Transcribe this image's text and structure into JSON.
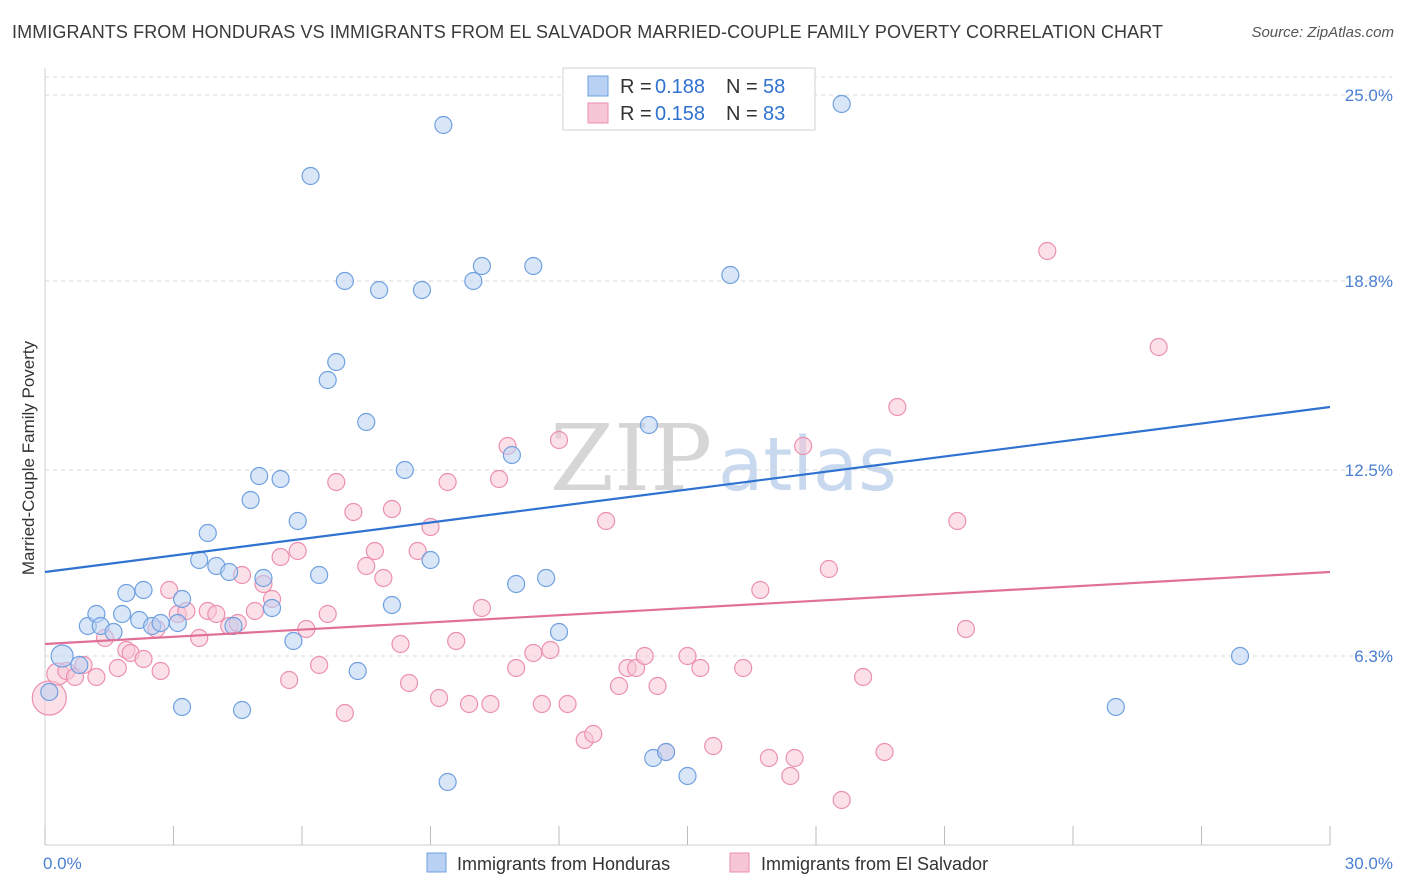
{
  "header": {
    "title": "IMMIGRANTS FROM HONDURAS VS IMMIGRANTS FROM EL SALVADOR MARRIED-COUPLE FAMILY POVERTY CORRELATION CHART",
    "source": "Source: ZipAtlas.com"
  },
  "watermark": {
    "part1": "ZIP",
    "part2": "atlas"
  },
  "colors": {
    "blue": "#6fa0e0",
    "blue_fill": "#b9d1f2",
    "blue_line": "#2f72d0",
    "pink": "#ec8fb0",
    "pink_fill": "#f7c6d6",
    "pink_line": "#e0709a",
    "tick_text": "#4a7fd1",
    "grid": "#d9d9d9"
  },
  "legend": {
    "rows": [
      {
        "r_label": "R = ",
        "r_value": "0.188",
        "n_label": "N = ",
        "n_value": "58"
      },
      {
        "r_label": "R = ",
        "r_value": "0.158",
        "n_label": "N = ",
        "n_value": "83"
      }
    ]
  },
  "chart_data": {
    "type": "scatter",
    "title": "IMMIGRANTS FROM HONDURAS VS IMMIGRANTS FROM EL SALVADOR MARRIED-COUPLE FAMILY POVERTY CORRELATION CHART",
    "xlabel": "",
    "ylabel": "Married-Couple Family Poverty",
    "xlim": [
      0,
      30
    ],
    "ylim": [
      0,
      25.6
    ],
    "x_tick_labels": [
      "0.0%",
      "30.0%"
    ],
    "y_ticks": [
      6.3,
      12.5,
      18.8,
      25.0
    ],
    "y_tick_labels": [
      "6.3%",
      "12.5%",
      "18.8%",
      "25.0%"
    ],
    "grid": true,
    "series": [
      {
        "name": "Immigrants from Honduras",
        "color": "blue",
        "r": 0.188,
        "n": 58,
        "trend": {
          "x": [
            0,
            30
          ],
          "y": [
            9.1,
            14.6
          ]
        },
        "points": [
          [
            0.4,
            6.3,
            2
          ],
          [
            0.8,
            6.0,
            1
          ],
          [
            1.0,
            7.3,
            1
          ],
          [
            1.2,
            7.7,
            1
          ],
          [
            1.3,
            7.3,
            1
          ],
          [
            1.6,
            7.1,
            1
          ],
          [
            1.8,
            7.7,
            1
          ],
          [
            1.9,
            8.4,
            1
          ],
          [
            2.2,
            7.5,
            1
          ],
          [
            2.3,
            8.5,
            1
          ],
          [
            2.5,
            7.3,
            1
          ],
          [
            2.7,
            7.4,
            1
          ],
          [
            3.1,
            7.4,
            1
          ],
          [
            3.2,
            8.2,
            1
          ],
          [
            3.6,
            9.5,
            1
          ],
          [
            3.8,
            10.4,
            1
          ],
          [
            4.0,
            9.3,
            1
          ],
          [
            4.3,
            9.1,
            1
          ],
          [
            4.4,
            7.3,
            1
          ],
          [
            4.8,
            11.5,
            1
          ],
          [
            5.0,
            12.3,
            1
          ],
          [
            5.1,
            8.9,
            1
          ],
          [
            5.3,
            7.9,
            1
          ],
          [
            5.5,
            12.2,
            1
          ],
          [
            5.8,
            6.8,
            1
          ],
          [
            5.9,
            10.8,
            1
          ],
          [
            6.2,
            22.3,
            1
          ],
          [
            6.4,
            9.0,
            1
          ],
          [
            6.6,
            15.5,
            1
          ],
          [
            6.8,
            16.1,
            1
          ],
          [
            7.0,
            18.8,
            1
          ],
          [
            7.3,
            5.8,
            1
          ],
          [
            7.5,
            14.1,
            1
          ],
          [
            7.8,
            18.5,
            1
          ],
          [
            8.1,
            8.0,
            1
          ],
          [
            8.4,
            12.5,
            1
          ],
          [
            8.8,
            18.5,
            1
          ],
          [
            9.0,
            9.5,
            1
          ],
          [
            9.3,
            24.0,
            1
          ],
          [
            9.4,
            2.1,
            1
          ],
          [
            10.0,
            18.8,
            1
          ],
          [
            10.2,
            19.3,
            1
          ],
          [
            10.9,
            13.0,
            1
          ],
          [
            11.0,
            8.7,
            1
          ],
          [
            11.4,
            19.3,
            1
          ],
          [
            11.7,
            8.9,
            1
          ],
          [
            12.0,
            7.1,
            1
          ],
          [
            14.1,
            14.0,
            1
          ],
          [
            14.2,
            2.9,
            1
          ],
          [
            14.5,
            3.1,
            1
          ],
          [
            15.0,
            2.3,
            1
          ],
          [
            16.0,
            19.0,
            1
          ],
          [
            18.6,
            24.7,
            1
          ],
          [
            25.0,
            4.6,
            1
          ],
          [
            27.9,
            6.3,
            1
          ],
          [
            0.1,
            5.1,
            1
          ],
          [
            4.6,
            4.5,
            1
          ],
          [
            3.2,
            4.6,
            1
          ]
        ]
      },
      {
        "name": "Immigrants from El Salvador",
        "color": "pink",
        "r": 0.158,
        "n": 83,
        "trend": {
          "x": [
            0,
            30
          ],
          "y": [
            6.7,
            9.1
          ]
        },
        "points": [
          [
            0.1,
            4.9,
            3
          ],
          [
            0.3,
            5.7,
            2
          ],
          [
            0.5,
            5.8,
            1
          ],
          [
            0.7,
            5.6,
            1
          ],
          [
            0.9,
            6.0,
            1
          ],
          [
            1.2,
            5.6,
            1
          ],
          [
            1.4,
            6.9,
            1
          ],
          [
            1.7,
            5.9,
            1
          ],
          [
            1.9,
            6.5,
            1
          ],
          [
            2.0,
            6.4,
            1
          ],
          [
            2.3,
            6.2,
            1
          ],
          [
            2.6,
            7.2,
            1
          ],
          [
            2.7,
            5.8,
            1
          ],
          [
            2.9,
            8.5,
            1
          ],
          [
            3.1,
            7.7,
            1
          ],
          [
            3.3,
            7.8,
            1
          ],
          [
            3.6,
            6.9,
            1
          ],
          [
            3.8,
            7.8,
            1
          ],
          [
            4.0,
            7.7,
            1
          ],
          [
            4.3,
            7.3,
            1
          ],
          [
            4.5,
            7.4,
            1
          ],
          [
            4.6,
            9.0,
            1
          ],
          [
            4.9,
            7.8,
            1
          ],
          [
            5.1,
            8.7,
            1
          ],
          [
            5.3,
            8.2,
            1
          ],
          [
            5.5,
            9.6,
            1
          ],
          [
            5.7,
            5.5,
            1
          ],
          [
            5.9,
            9.8,
            1
          ],
          [
            6.1,
            7.2,
            1
          ],
          [
            6.4,
            6.0,
            1
          ],
          [
            6.6,
            7.7,
            1
          ],
          [
            6.8,
            12.1,
            1
          ],
          [
            7.0,
            4.4,
            1
          ],
          [
            7.2,
            11.1,
            1
          ],
          [
            7.5,
            9.3,
            1
          ],
          [
            7.7,
            9.8,
            1
          ],
          [
            7.9,
            8.9,
            1
          ],
          [
            8.1,
            11.2,
            1
          ],
          [
            8.3,
            6.7,
            1
          ],
          [
            8.5,
            5.4,
            1
          ],
          [
            8.7,
            9.8,
            1
          ],
          [
            9.0,
            10.6,
            1
          ],
          [
            9.2,
            4.9,
            1
          ],
          [
            9.4,
            12.1,
            1
          ],
          [
            9.6,
            6.8,
            1
          ],
          [
            9.9,
            4.7,
            1
          ],
          [
            10.2,
            7.9,
            1
          ],
          [
            10.4,
            4.7,
            1
          ],
          [
            10.6,
            12.2,
            1
          ],
          [
            10.8,
            13.3,
            1
          ],
          [
            11.0,
            5.9,
            1
          ],
          [
            11.4,
            6.4,
            1
          ],
          [
            11.6,
            4.7,
            1
          ],
          [
            11.8,
            6.5,
            1
          ],
          [
            12.0,
            13.5,
            1
          ],
          [
            12.2,
            4.7,
            1
          ],
          [
            12.6,
            3.5,
            1
          ],
          [
            12.8,
            3.7,
            1
          ],
          [
            13.1,
            10.8,
            1
          ],
          [
            13.4,
            5.3,
            1
          ],
          [
            13.6,
            5.9,
            1
          ],
          [
            13.8,
            5.9,
            1
          ],
          [
            14.0,
            6.3,
            1
          ],
          [
            14.3,
            5.3,
            1
          ],
          [
            14.5,
            3.1,
            1
          ],
          [
            15.0,
            6.3,
            1
          ],
          [
            15.3,
            5.9,
            1
          ],
          [
            15.6,
            3.3,
            1
          ],
          [
            16.3,
            5.9,
            1
          ],
          [
            16.7,
            8.5,
            1
          ],
          [
            16.9,
            2.9,
            1
          ],
          [
            17.4,
            2.3,
            1
          ],
          [
            17.5,
            2.9,
            1
          ],
          [
            17.7,
            13.3,
            1
          ],
          [
            18.3,
            9.2,
            1
          ],
          [
            18.6,
            1.5,
            1
          ],
          [
            19.1,
            5.6,
            1
          ],
          [
            19.6,
            3.1,
            1
          ],
          [
            19.9,
            14.6,
            1
          ],
          [
            21.3,
            10.8,
            1
          ],
          [
            21.5,
            7.2,
            1
          ],
          [
            23.4,
            19.8,
            1
          ],
          [
            26.0,
            16.6,
            1
          ]
        ]
      }
    ]
  }
}
